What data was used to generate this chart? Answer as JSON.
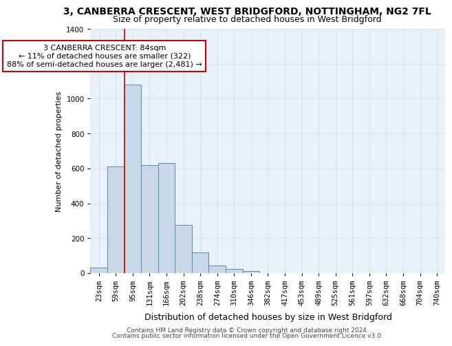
{
  "title": "3, CANBERRA CRESCENT, WEST BRIDGFORD, NOTTINGHAM, NG2 7FL",
  "subtitle": "Size of property relative to detached houses in West Bridgford",
  "xlabel": "Distribution of detached houses by size in West Bridgford",
  "ylabel": "Number of detached properties",
  "categories": [
    "23sqm",
    "59sqm",
    "95sqm",
    "131sqm",
    "166sqm",
    "202sqm",
    "238sqm",
    "274sqm",
    "310sqm",
    "346sqm",
    "382sqm",
    "417sqm",
    "453sqm",
    "489sqm",
    "525sqm",
    "561sqm",
    "597sqm",
    "632sqm",
    "668sqm",
    "704sqm",
    "740sqm"
  ],
  "values": [
    30,
    610,
    1080,
    620,
    630,
    275,
    120,
    42,
    22,
    10,
    0,
    0,
    0,
    0,
    0,
    0,
    0,
    0,
    0,
    0,
    0
  ],
  "bar_color": "#c8d8e8",
  "bar_edge_color": "#5a8aac",
  "vline_x_index": 1.5,
  "vline_color": "#cc0000",
  "annotation_text": "3 CANBERRA CRESCENT: 84sqm\n← 11% of detached houses are smaller (322)\n88% of semi-detached houses are larger (2,481) →",
  "annotation_box_color": "#ffffff",
  "annotation_box_edge": "#cc0000",
  "ylim": [
    0,
    1400
  ],
  "yticks": [
    0,
    200,
    400,
    600,
    800,
    1000,
    1200,
    1400
  ],
  "title_fontsize": 10,
  "subtitle_fontsize": 9,
  "xlabel_fontsize": 9,
  "ylabel_fontsize": 8,
  "tick_fontsize": 7.5,
  "annotation_fontsize": 8,
  "footer_line1": "Contains HM Land Registry data © Crown copyright and database right 2024.",
  "footer_line2": "Contains public sector information licensed under the Open Government Licence v3.0.",
  "background_color": "#ffffff",
  "grid_color": "#d0d8e0",
  "plot_bg_color": "#e8f0f8"
}
